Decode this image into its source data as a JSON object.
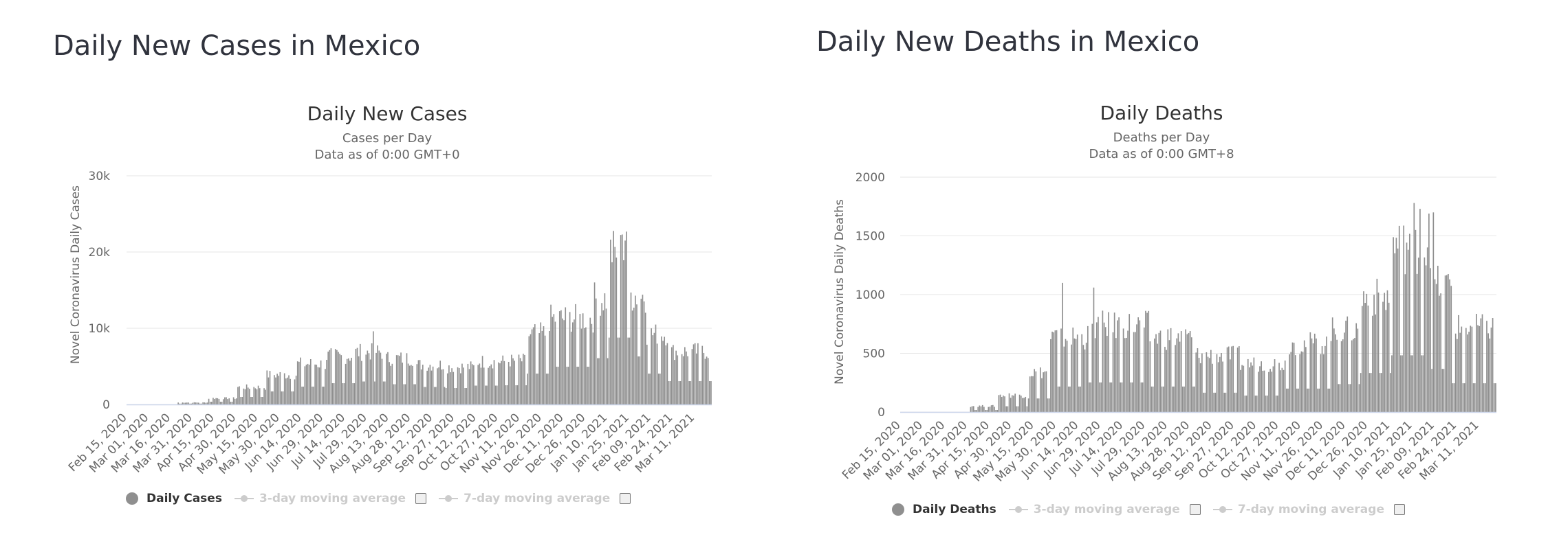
{
  "panels": [
    {
      "heading": "Daily New Cases in Mexico",
      "legend": {
        "primary": "Daily Cases",
        "ma3": "3-day moving average",
        "ma7": "7-day moving average"
      }
    },
    {
      "heading": "Daily New Deaths in Mexico",
      "legend": {
        "primary": "Daily Deaths",
        "ma3": "3-day moving average",
        "ma7": "7-day moving average"
      }
    }
  ],
  "colors": {
    "bar": "#8f8f8f",
    "grid": "#e6e6e6",
    "axis_line": "#ccd6eb",
    "legend_inactive": "#cccccc"
  },
  "chart_data": [
    {
      "type": "bar",
      "title": "Daily New Cases",
      "subtitle": [
        "Cases per Day",
        "Data as of 0:00 GMT+0"
      ],
      "ylabel": "Novel Coronavirus Daily Cases",
      "ylim": [
        0,
        30000
      ],
      "ytick_values": [
        0,
        10000,
        20000,
        30000
      ],
      "ytick_labels": [
        "0",
        "10k",
        "20k",
        "30k"
      ],
      "x_tick_labels": [
        "Feb 15, 2020",
        "Mar 01, 2020",
        "Mar 16, 2020",
        "Mar 31, 2020",
        "Apr 15, 2020",
        "Apr 30, 2020",
        "May 15, 2020",
        "May 30, 2020",
        "Jun 14, 2020",
        "Jun 29, 2020",
        "Jul 14, 2020",
        "Jul 29, 2020",
        "Aug 13, 2020",
        "Aug 28, 2020",
        "Sep 12, 2020",
        "Sep 27, 2020",
        "Oct 12, 2020",
        "Oct 27, 2020",
        "Nov 11, 2020",
        "Nov 26, 2020",
        "Dec 11, 2020",
        "Dec 26, 2020",
        "Jan 10, 2021",
        "Jan 25, 2021",
        "Feb 09, 2021",
        "Feb 24, 2021",
        "Mar 11, 2021"
      ],
      "grid": true,
      "legend_position": "bottom",
      "x_start": "2020-02-15",
      "x_end": "2021-03-22",
      "segments": [
        {
          "start": "2020-02-15",
          "end": "2020-03-20",
          "value": 0
        },
        {
          "start": "2020-03-21",
          "end": "2020-04-10",
          "value": 250
        },
        {
          "start": "2020-04-11",
          "end": "2020-04-30",
          "value": 800
        },
        {
          "start": "2020-05-01",
          "end": "2020-05-20",
          "value": 2200
        },
        {
          "start": "2020-05-21",
          "end": "2020-06-10",
          "value": 3800
        },
        {
          "start": "2020-06-11",
          "end": "2020-06-30",
          "value": 5200
        },
        {
          "start": "2020-07-01",
          "end": "2020-07-20",
          "value": 6200
        },
        {
          "start": "2020-07-21",
          "end": "2020-08-10",
          "value": 6700
        },
        {
          "start": "2020-08-11",
          "end": "2020-08-31",
          "value": 5900
        },
        {
          "start": "2020-09-01",
          "end": "2020-09-20",
          "value": 5100
        },
        {
          "start": "2020-09-21",
          "end": "2020-10-10",
          "value": 4800
        },
        {
          "start": "2020-10-11",
          "end": "2020-10-31",
          "value": 5500
        },
        {
          "start": "2020-11-01",
          "end": "2020-11-15",
          "value": 5600
        },
        {
          "start": "2020-11-16",
          "end": "2020-11-30",
          "value": 9000
        },
        {
          "start": "2020-12-01",
          "end": "2020-12-31",
          "value": 11000
        },
        {
          "start": "2021-01-01",
          "end": "2021-01-10",
          "value": 13500
        },
        {
          "start": "2021-01-11",
          "end": "2021-01-25",
          "value": 19500
        },
        {
          "start": "2021-01-26",
          "end": "2021-02-05",
          "value": 14000
        },
        {
          "start": "2021-02-06",
          "end": "2021-02-20",
          "value": 9000
        },
        {
          "start": "2021-02-21",
          "end": "2021-03-22",
          "value": 6800
        }
      ],
      "peaks": [
        {
          "date": "2020-08-02",
          "value": 9600
        },
        {
          "date": "2021-01-20",
          "value": 22300
        },
        {
          "date": "2021-01-22",
          "value": 21500
        }
      ],
      "weekly_dip": 0.45
    },
    {
      "type": "bar",
      "title": "Daily Deaths",
      "subtitle": [
        "Deaths per Day",
        "Data as of 0:00 GMT+8"
      ],
      "ylabel": "Novel Coronavirus Daily Deaths",
      "ylim": [
        0,
        2000
      ],
      "ytick_values": [
        0,
        500,
        1000,
        1500,
        2000
      ],
      "ytick_labels": [
        "0",
        "500",
        "1000",
        "1500",
        "2000"
      ],
      "x_tick_labels": [
        "Feb 15, 2020",
        "Mar 01, 2020",
        "Mar 16, 2020",
        "Mar 31, 2020",
        "Apr 15, 2020",
        "Apr 30, 2020",
        "May 15, 2020",
        "May 30, 2020",
        "Jun 14, 2020",
        "Jun 29, 2020",
        "Jul 14, 2020",
        "Jul 29, 2020",
        "Aug 13, 2020",
        "Aug 28, 2020",
        "Sep 12, 2020",
        "Sep 27, 2020",
        "Oct 12, 2020",
        "Oct 27, 2020",
        "Nov 11, 2020",
        "Nov 26, 2020",
        "Dec 11, 2020",
        "Dec 26, 2020",
        "Jan 10, 2021",
        "Jan 25, 2021",
        "Feb 09, 2021",
        "Feb 24, 2021",
        "Mar 11, 2021"
      ],
      "grid": true,
      "legend_position": "bottom",
      "x_start": "2020-02-15",
      "x_end": "2021-03-22",
      "segments": [
        {
          "start": "2020-02-15",
          "end": "2020-04-01",
          "value": 0
        },
        {
          "start": "2020-04-02",
          "end": "2020-04-20",
          "value": 50
        },
        {
          "start": "2020-04-21",
          "end": "2020-05-10",
          "value": 140
        },
        {
          "start": "2020-05-11",
          "end": "2020-05-25",
          "value": 330
        },
        {
          "start": "2020-05-26",
          "end": "2020-06-20",
          "value": 620
        },
        {
          "start": "2020-06-21",
          "end": "2020-07-31",
          "value": 720
        },
        {
          "start": "2020-08-01",
          "end": "2020-08-31",
          "value": 620
        },
        {
          "start": "2020-09-01",
          "end": "2020-09-30",
          "value": 470
        },
        {
          "start": "2020-10-01",
          "end": "2020-10-31",
          "value": 400
        },
        {
          "start": "2020-11-01",
          "end": "2020-11-30",
          "value": 570
        },
        {
          "start": "2020-12-01",
          "end": "2020-12-20",
          "value": 680
        },
        {
          "start": "2020-12-21",
          "end": "2021-01-10",
          "value": 950
        },
        {
          "start": "2021-01-11",
          "end": "2021-02-05",
          "value": 1380
        },
        {
          "start": "2021-02-06",
          "end": "2021-02-20",
          "value": 1050
        },
        {
          "start": "2021-02-21",
          "end": "2021-03-22",
          "value": 700
        }
      ],
      "peaks": [
        {
          "date": "2020-06-03",
          "value": 1100
        },
        {
          "date": "2020-06-24",
          "value": 1060
        },
        {
          "date": "2021-01-26",
          "value": 1780
        },
        {
          "date": "2021-01-30",
          "value": 1730
        },
        {
          "date": "2021-02-05",
          "value": 1690
        },
        {
          "date": "2021-02-08",
          "value": 1700
        }
      ],
      "weekly_dip": 0.35
    }
  ]
}
